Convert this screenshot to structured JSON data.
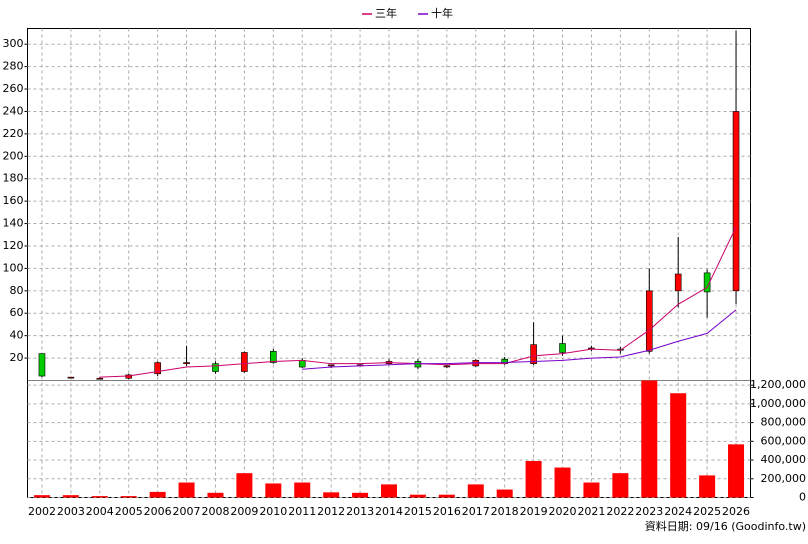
{
  "chart_data": {
    "type": "candlestick",
    "categories": [
      "2002",
      "2003",
      "2004",
      "2005",
      "2006",
      "2007",
      "2008",
      "2009",
      "2010",
      "2011",
      "2012",
      "2013",
      "2014",
      "2015",
      "2016",
      "2017",
      "2018",
      "2019",
      "2020",
      "2021",
      "2022",
      "2023",
      "2024",
      "2025",
      "2026"
    ],
    "open": [
      24,
      3,
      2,
      2,
      6,
      15,
      15,
      8,
      26,
      18,
      13,
      14,
      15,
      17,
      13,
      13,
      19,
      15,
      33,
      29,
      28,
      26,
      80,
      96,
      80
    ],
    "high": [
      24,
      3,
      3,
      6,
      17,
      31,
      17,
      26,
      28,
      20,
      14,
      15,
      19,
      19,
      14,
      19,
      21,
      52,
      40,
      31,
      30,
      100,
      128,
      99,
      312
    ],
    "low": [
      3,
      2,
      2,
      1,
      4,
      13,
      6,
      7,
      15,
      11,
      11,
      13,
      14,
      10,
      11,
      12,
      14,
      14,
      22,
      26,
      24,
      24,
      65,
      56,
      68
    ],
    "close": [
      4,
      3,
      2,
      5,
      16,
      16,
      8,
      25,
      16,
      12,
      14,
      14,
      17,
      12,
      13,
      18,
      15,
      32,
      25,
      29,
      27,
      80,
      95,
      79,
      240
    ],
    "up_color": "#ff0000",
    "down_color": "#00cc00",
    "series": [
      {
        "name": "三年",
        "color": "#cc0066",
        "values": [
          null,
          null,
          3,
          4,
          8,
          12,
          13,
          15,
          17,
          18,
          15,
          15,
          16,
          15,
          14,
          15,
          15,
          22,
          24,
          28,
          27,
          45,
          68,
          83,
          137
        ]
      },
      {
        "name": "十年",
        "color": "#7a00cc",
        "values": [
          null,
          null,
          null,
          null,
          null,
          null,
          null,
          null,
          null,
          10,
          12,
          13,
          14,
          15,
          15,
          16,
          16,
          17,
          18,
          20,
          21,
          27,
          35,
          42,
          63
        ]
      }
    ],
    "ylim": [
      0,
      314
    ],
    "yticks": [
      20,
      40,
      60,
      80,
      100,
      120,
      140,
      160,
      180,
      200,
      220,
      240,
      260,
      280,
      300
    ],
    "volume": {
      "color": "#ff0000",
      "values": [
        25000,
        25000,
        15000,
        15000,
        60000,
        160000,
        50000,
        260000,
        150000,
        160000,
        55000,
        50000,
        140000,
        30000,
        30000,
        140000,
        85000,
        390000,
        320000,
        160000,
        260000,
        1250000,
        1114000,
        236000,
        568000
      ],
      "ylim": [
        0,
        1250000
      ],
      "yticks": [
        0,
        {
          "value": 200000,
          "label": "200,000"
        },
        {
          "value": 400000,
          "label": "400,000"
        },
        {
          "value": 600000,
          "label": "600,000"
        },
        {
          "value": 800000,
          "label": "800,000"
        },
        {
          "value": 1000000,
          "label": "1,000,000"
        },
        {
          "value": 1200000,
          "label": "1,200,000"
        }
      ]
    },
    "grid": true,
    "source_note": "資料日期: 09/16 (Goodinfo.tw)"
  }
}
